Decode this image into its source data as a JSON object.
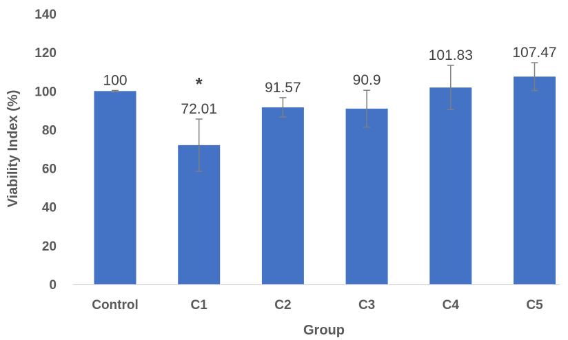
{
  "chart_data": {
    "type": "bar",
    "title": "",
    "xlabel": "Group",
    "ylabel": "Viability Index (%)",
    "ylim": [
      0,
      140
    ],
    "yticks": [
      0,
      20,
      40,
      60,
      80,
      100,
      120,
      140
    ],
    "grid": false,
    "legend": "none",
    "categories": [
      "Control",
      "C1",
      "C2",
      "C3",
      "C4",
      "C5"
    ],
    "values": [
      100,
      72.01,
      91.57,
      90.9,
      101.83,
      107.47
    ],
    "data_labels": [
      "100",
      "72.01",
      "91.57",
      "90.9",
      "101.83",
      "107.47"
    ],
    "error": [
      0.3,
      13.5,
      5,
      9.5,
      11.5,
      7.2
    ],
    "annotations": [
      {
        "category": "C1",
        "text": "*"
      }
    ],
    "colors": {
      "bar": "#4472C4",
      "error_bar": "#7f7f7f",
      "axis_text": "#595959",
      "data_label": "#404040"
    }
  }
}
